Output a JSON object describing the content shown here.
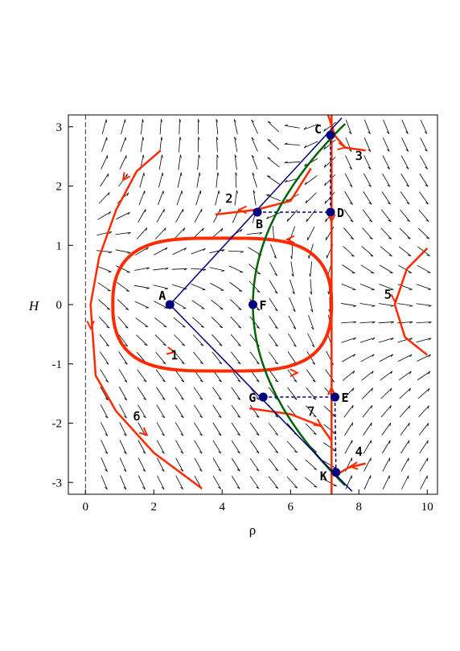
{
  "chart_data": {
    "type": "line",
    "xlabel": "ρ",
    "ylabel": "H",
    "xlim": [
      -0.5,
      10.3
    ],
    "ylim": [
      -3.2,
      3.2
    ],
    "x_ticks": [
      0,
      2,
      4,
      6,
      8,
      10
    ],
    "y_ticks": [
      -3,
      -2,
      -1,
      0,
      1,
      2,
      3
    ],
    "grid": false,
    "colors": {
      "trajectory": "#ff2a00",
      "envelope_lines": "#000080",
      "nullcline": "#006400",
      "point": "#00007f",
      "dotted": "#00007f",
      "field": "#000000"
    },
    "points": [
      {
        "label": "A",
        "x": 2.47,
        "y": 0.0
      },
      {
        "label": "B",
        "x": 5.03,
        "y": 1.56
      },
      {
        "label": "C",
        "x": 7.17,
        "y": 2.86
      },
      {
        "label": "D",
        "x": 7.17,
        "y": 1.56
      },
      {
        "label": "E",
        "x": 7.3,
        "y": -1.56
      },
      {
        "label": "F",
        "x": 4.9,
        "y": 0.0
      },
      {
        "label": "G",
        "x": 5.2,
        "y": -1.56
      },
      {
        "label": "K",
        "x": 7.33,
        "y": -2.83
      }
    ],
    "trajectory_labels": [
      {
        "label": "1",
        "x": 2.6,
        "y": -0.92
      },
      {
        "label": "2",
        "x": 4.2,
        "y": 1.72
      },
      {
        "label": "3",
        "x": 8.0,
        "y": 2.44
      },
      {
        "label": "4",
        "x": 8.0,
        "y": -2.55
      },
      {
        "label": "5",
        "x": 8.85,
        "y": 0.1
      },
      {
        "label": "6",
        "x": 1.5,
        "y": -1.95
      },
      {
        "label": "7",
        "x": 6.6,
        "y": -1.87
      }
    ]
  }
}
